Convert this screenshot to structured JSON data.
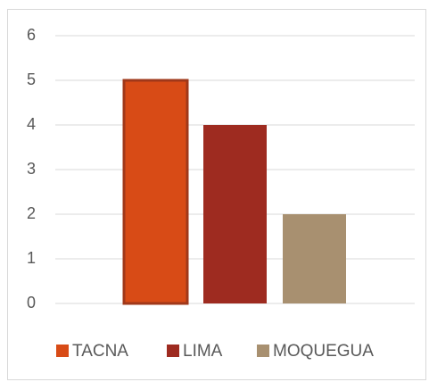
{
  "chart_data": {
    "type": "bar",
    "categories": [
      null
    ],
    "series": [
      {
        "name": "TACNA",
        "color": "#d84b16",
        "values": [
          5
        ]
      },
      {
        "name": "LIMA",
        "color": "#9e2b20",
        "values": [
          4
        ]
      },
      {
        "name": "MOQUEGUA",
        "color": "#a89070",
        "values": [
          2
        ]
      }
    ],
    "ylim": [
      0,
      6
    ],
    "yticks": [
      0,
      1,
      2,
      3,
      4,
      5,
      6
    ],
    "grid": true,
    "legend": "bottom"
  }
}
